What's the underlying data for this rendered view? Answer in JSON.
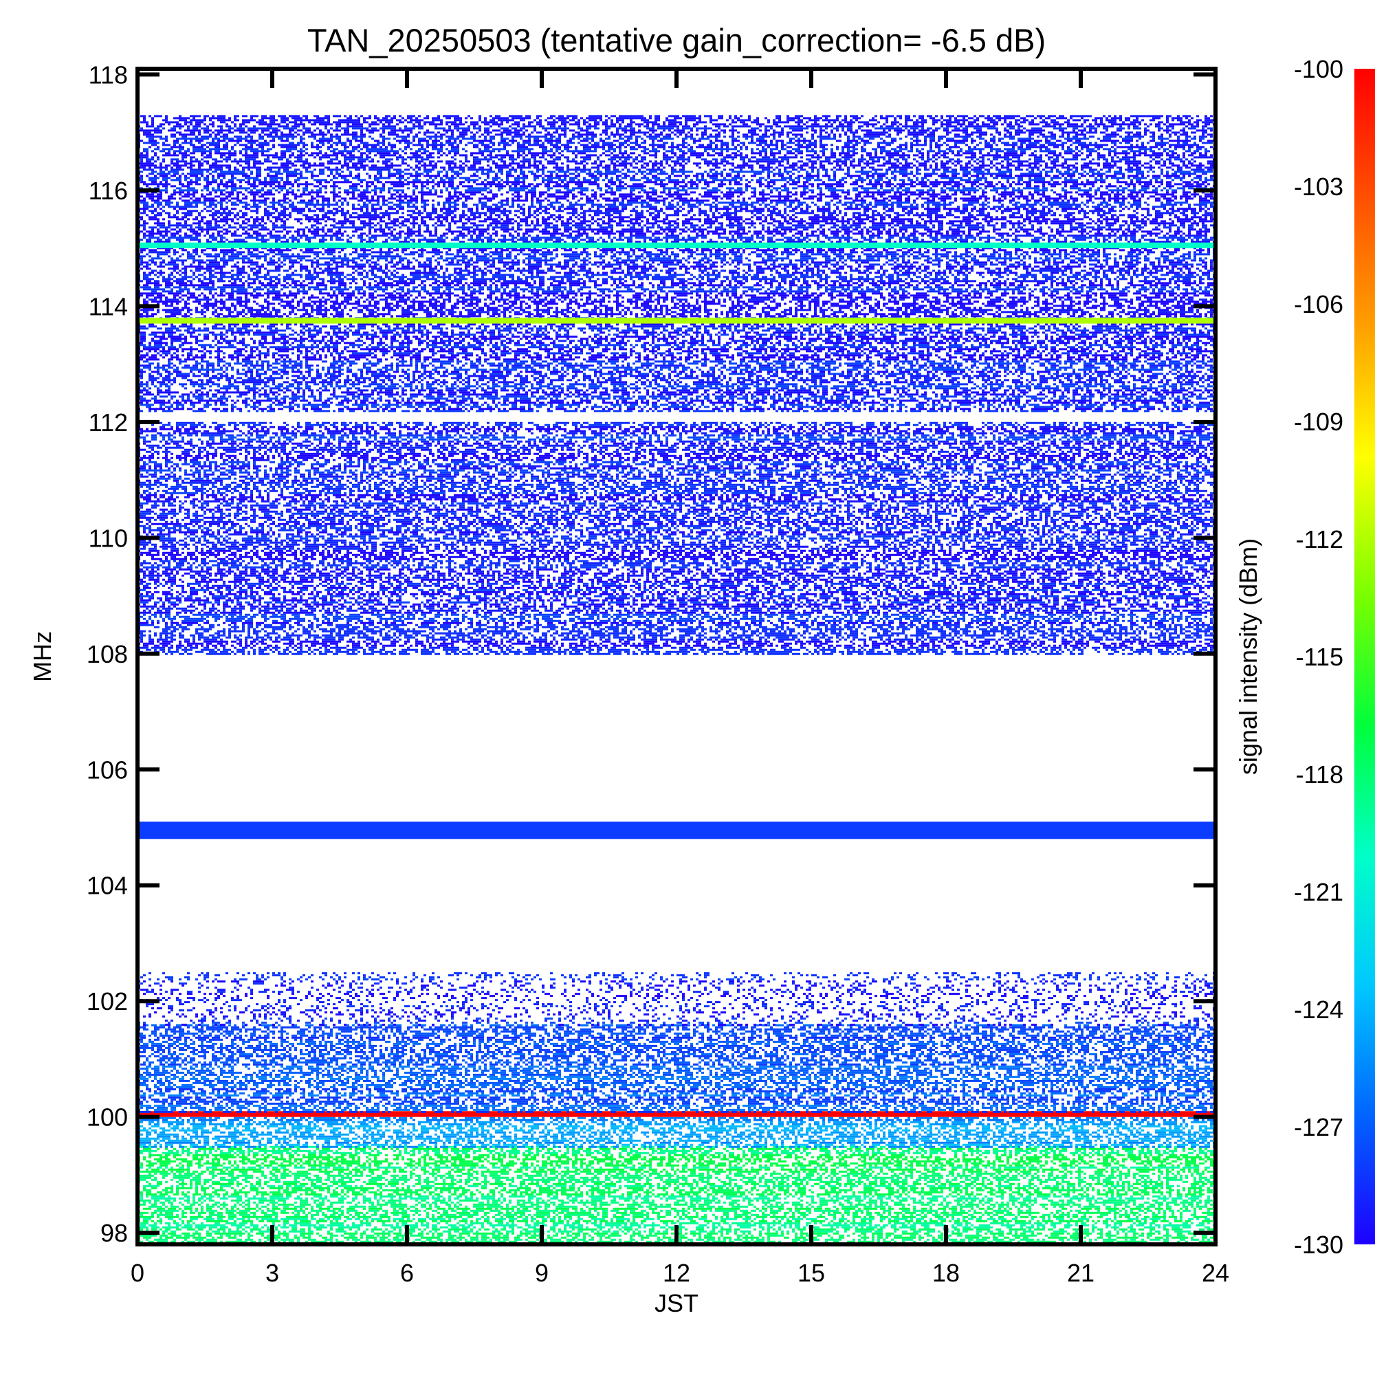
{
  "chart_data": {
    "type": "heatmap",
    "title": "TAN_20250503 (tentative gain_correction= -6.5 dB)",
    "xlabel": "JST",
    "ylabel": "MHz",
    "colorbar_label": "signal intensity (dBm)",
    "xlim": [
      0,
      24
    ],
    "ylim": [
      97.8,
      118.1
    ],
    "x_ticks": [
      "0",
      "3",
      "6",
      "9",
      "12",
      "15",
      "18",
      "21",
      "24"
    ],
    "y_ticks": [
      "98",
      "100",
      "102",
      "104",
      "106",
      "108",
      "110",
      "112",
      "114",
      "116",
      "118"
    ],
    "colorbar_range": [
      -130,
      -100
    ],
    "colorbar_ticks": [
      "-100",
      "-103",
      "-106",
      "-109",
      "-112",
      "-115",
      "-118",
      "-121",
      "-124",
      "-127",
      "-130"
    ],
    "colormap": [
      "#1e00ff",
      "#0064ff",
      "#00c8ff",
      "#00ffc8",
      "#00ff3c",
      "#78ff00",
      "#ffff00",
      "#ffa000",
      "#ff5000",
      "#ff0000"
    ],
    "frequency_bands": [
      {
        "from_mhz": 97.8,
        "to_mhz": 99.5,
        "typical_dbm": -118,
        "note": "dense"
      },
      {
        "from_mhz": 99.5,
        "to_mhz": 100.0,
        "typical_dbm": -125,
        "note": "dense"
      },
      {
        "from_mhz": 100.0,
        "to_mhz": 100.1,
        "typical_dbm": -100,
        "note": "continuous line"
      },
      {
        "from_mhz": 100.1,
        "to_mhz": 101.6,
        "typical_dbm": -127,
        "note": "dense"
      },
      {
        "from_mhz": 101.6,
        "to_mhz": 102.5,
        "typical_dbm": -129,
        "note": "sparse"
      },
      {
        "from_mhz": 104.8,
        "to_mhz": 105.1,
        "typical_dbm": -128,
        "note": "continuous line"
      },
      {
        "from_mhz": 108.0,
        "to_mhz": 112.0,
        "typical_dbm": -129,
        "note": "dense"
      },
      {
        "from_mhz": 112.2,
        "to_mhz": 117.3,
        "typical_dbm": -129,
        "note": "dense"
      },
      {
        "from_mhz": 113.7,
        "to_mhz": 113.8,
        "typical_dbm": -112,
        "note": "continuous line"
      },
      {
        "from_mhz": 115.0,
        "to_mhz": 115.1,
        "typical_dbm": -120,
        "note": "continuous line"
      }
    ],
    "grid": false
  }
}
